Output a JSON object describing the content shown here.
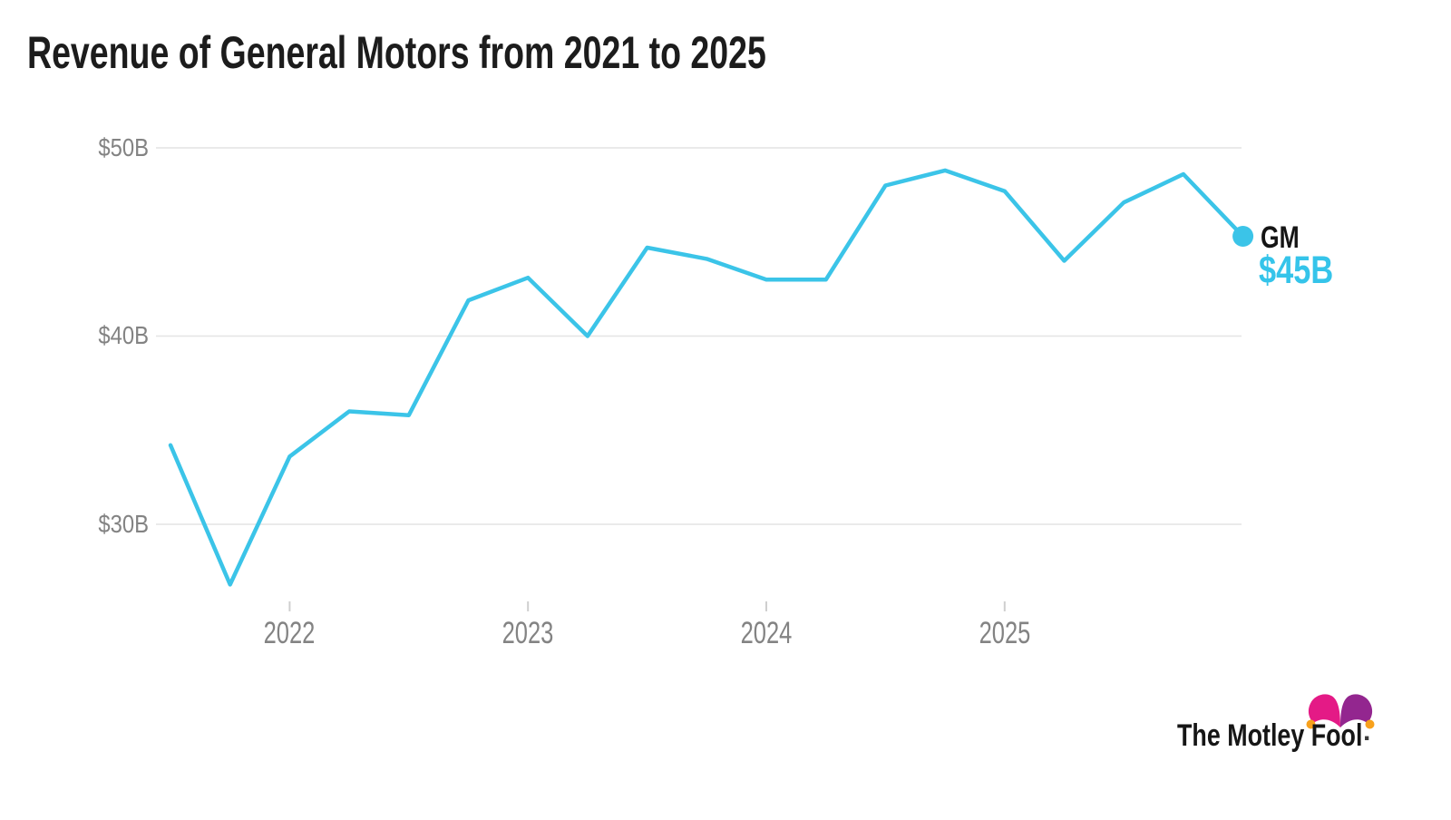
{
  "title": "Revenue of General Motors from 2021 to 2025",
  "chart_data": {
    "type": "line",
    "x": [
      "Q2 2021",
      "Q3 2021",
      "Q4 2021",
      "Q1 2022",
      "Q2 2022",
      "Q3 2022",
      "Q4 2022",
      "Q1 2023",
      "Q2 2023",
      "Q3 2023",
      "Q4 2023",
      "Q1 2024",
      "Q2 2024",
      "Q3 2024",
      "Q4 2024",
      "Q1 2025",
      "Q2 2025",
      "Q3 2025",
      "Q4 2025"
    ],
    "series": [
      {
        "name": "GM",
        "values": [
          34.2,
          26.8,
          33.6,
          36.0,
          35.8,
          41.9,
          43.1,
          40.0,
          44.7,
          44.1,
          43.0,
          43.0,
          48.0,
          48.8,
          47.7,
          44.0,
          47.1,
          48.6,
          45.3
        ],
        "unit": "billion USD",
        "color": "#3bc4e8"
      }
    ],
    "title": "Revenue of General Motors from 2021 to 2025",
    "xlabel": "",
    "ylabel": "",
    "x_ticks": [
      "2022",
      "2023",
      "2024",
      "2025"
    ],
    "y_ticks": [
      "$50B",
      "$40B",
      "$30B"
    ],
    "y_tick_values": [
      50,
      40,
      30
    ],
    "ylim_approx": [
      26,
      51
    ],
    "grid": "horizontal gridlines only, no axis lines",
    "legend_position": "none",
    "end_label": {
      "series": "GM",
      "value": "$45B"
    },
    "end_marker": "filled circle on last data point"
  },
  "logo": {
    "text": "The Motley Fool",
    "mark": ".",
    "hat": {
      "left_lobe": "#e41a86",
      "right_lobe": "#93268f",
      "balls": "#f8a11c"
    }
  },
  "colors": {
    "background": "#ffffff",
    "title_text": "#1c1c1c",
    "line": "#3bc4e8",
    "end_value_text": "#35c4ea",
    "end_series_text": "#151515",
    "gridline": "#e4e4e4",
    "tick": "#cfcfcf",
    "axis_label_text": "#838383"
  }
}
